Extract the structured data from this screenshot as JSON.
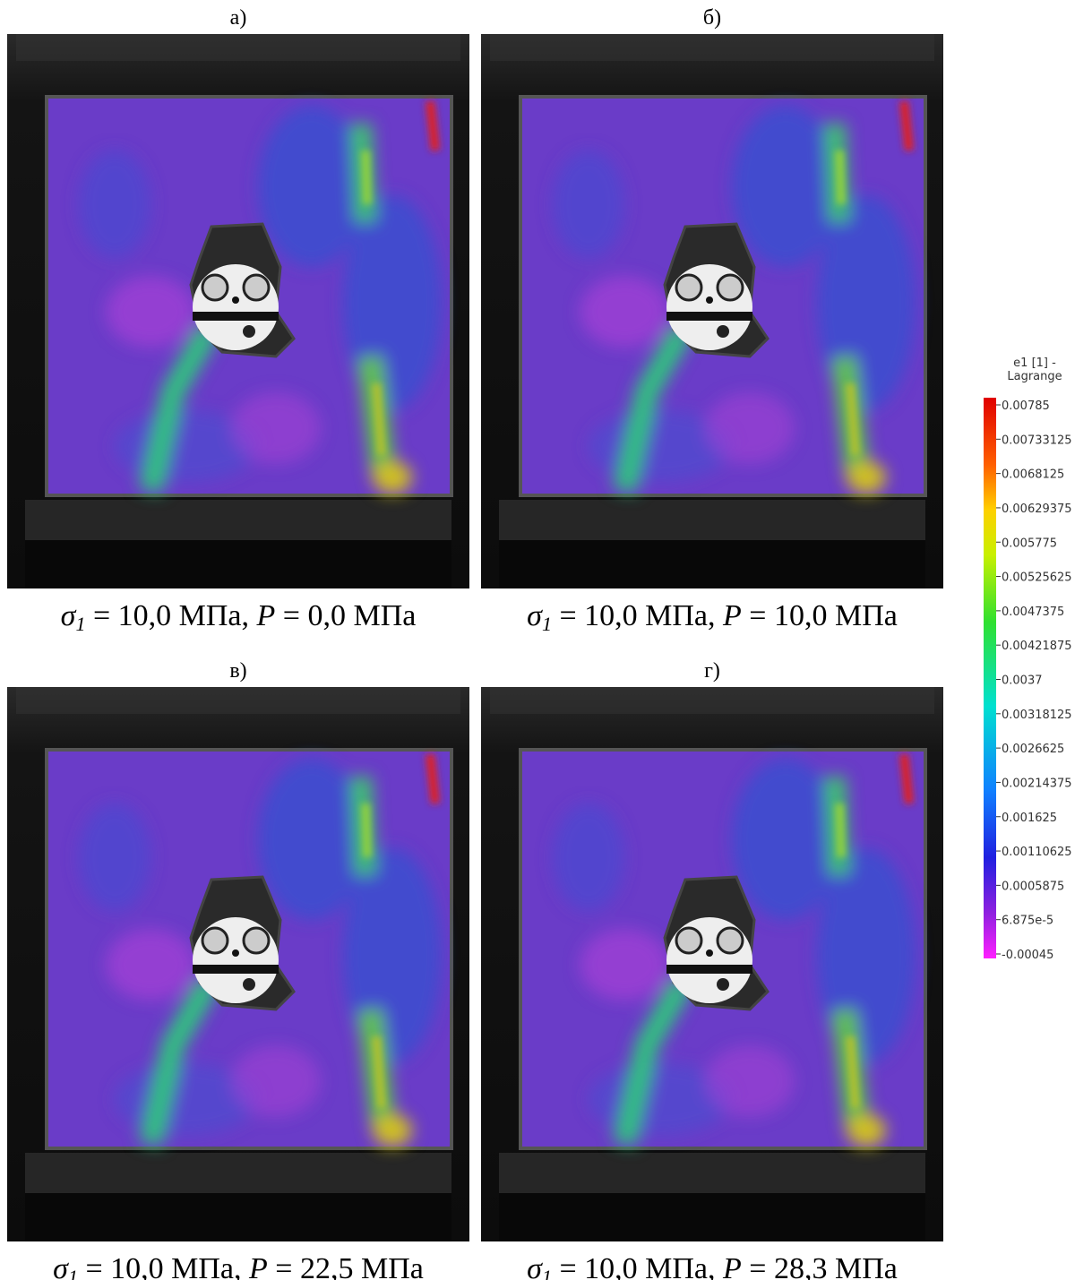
{
  "panels": [
    {
      "label": "а)",
      "symbol": "σ",
      "index": "1",
      "stress": " = 10,0 МПа, ",
      "symbol2": "P",
      "pressure": " = 0,0 МПа"
    },
    {
      "label": "б)",
      "symbol": "σ",
      "index": "1",
      "stress": " = 10,0 МПа, ",
      "symbol2": "P",
      "pressure": " = 10,0 МПа"
    },
    {
      "label": "в)",
      "symbol": "σ",
      "index": "1",
      "stress": " = 10,0 МПа, ",
      "symbol2": "P",
      "pressure": " = 22,5 МПа"
    },
    {
      "label": "г)",
      "symbol": "σ",
      "index": "1",
      "stress": " = 10,0 МПа, ",
      "symbol2": "P",
      "pressure": " = 28,3 МПа"
    }
  ],
  "colorbar": {
    "title": [
      "e1 [1] -",
      "Lagrange"
    ],
    "labels": [
      "0.00785",
      "0.00733125",
      "0.0068125",
      "0.00629375",
      "0.005775",
      "0.00525625",
      "0.0047375",
      "0.00421875",
      "0.0037",
      "0.00318125",
      "0.0026625",
      "0.00214375",
      "0.001625",
      "0.00110625",
      "0.0005875",
      "6.875e-5",
      "-0.00045"
    ]
  }
}
